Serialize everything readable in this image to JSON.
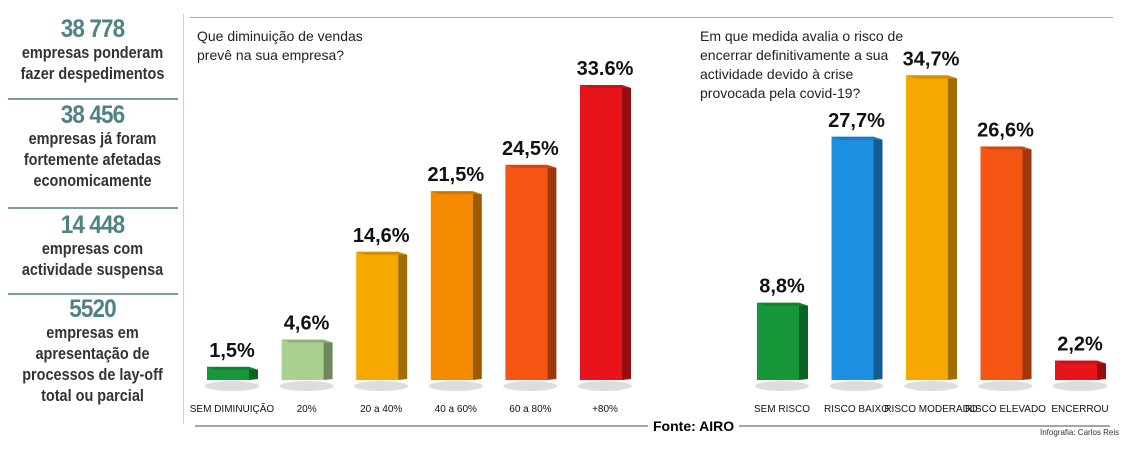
{
  "sidebar": [
    {
      "number": "38 778",
      "text": "empresas ponderam fazer despedimentos"
    },
    {
      "number": "38 456",
      "text": "empresas já foram fortemente afetadas economicamente"
    },
    {
      "number": "14 448",
      "text": "empresas com actividade suspensa"
    },
    {
      "number": "5520",
      "text": "empresas em apresentação de processos de lay-off total ou parcial"
    }
  ],
  "source": "Fonte: AIRO",
  "credit": "Infografia: Carlos Reis",
  "chart_data": [
    {
      "type": "bar",
      "title": "Que diminuição de vendas prevê na sua empresa?",
      "categories": [
        "SEM DIMINUIÇÃO",
        "20%",
        "20 a 40%",
        "40 a 60%",
        "60 a 80%",
        "+80%"
      ],
      "values": [
        1.5,
        4.6,
        14.6,
        21.5,
        24.5,
        33.6
      ],
      "labels": [
        "1,5%",
        "4,6%",
        "14,6%",
        "21,5%",
        "24,5%",
        "33.6%"
      ],
      "colors": [
        "#17973a",
        "#a9d08e",
        "#f6a800",
        "#f58a00",
        "#f45512",
        "#e8141c"
      ],
      "ylim": [
        0,
        35
      ]
    },
    {
      "type": "bar",
      "title": "Em que medida avalia o risco de encerrar definitivamente a sua actividade devido à crise provocada pela covid-19?",
      "categories": [
        "SEM RISCO",
        "RISCO BAIXO",
        "RISCO MODERADO",
        "RISCO ELEVADO",
        "ENCERROU"
      ],
      "values": [
        8.8,
        27.7,
        34.7,
        26.6,
        2.2
      ],
      "labels": [
        "8,8%",
        "27,7%",
        "34,7%",
        "26,6%",
        "2,2%"
      ],
      "colors": [
        "#17973a",
        "#1d8fe0",
        "#f6a800",
        "#f45512",
        "#e8141c"
      ],
      "ylim": [
        0,
        35
      ]
    }
  ]
}
